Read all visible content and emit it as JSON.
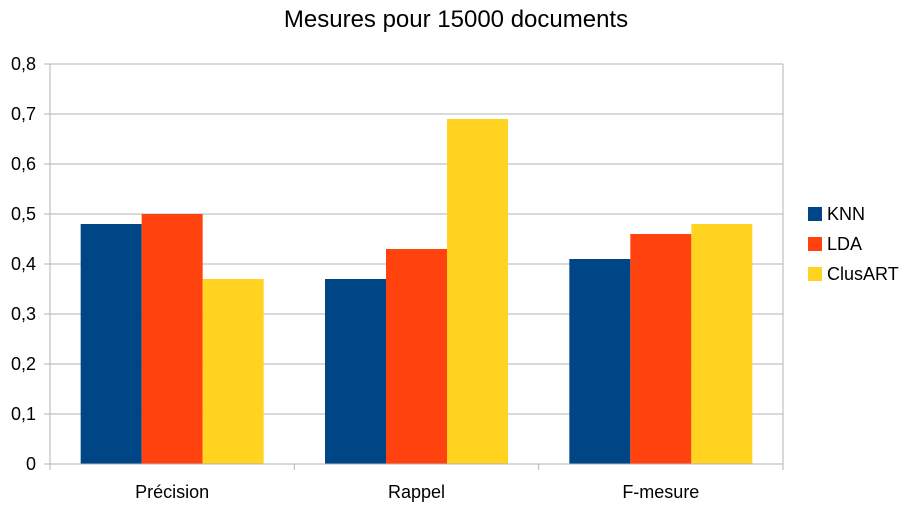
{
  "chart_data": {
    "type": "bar",
    "title": "Mesures pour 15000 documents",
    "categories": [
      "Précision",
      "Rappel",
      "F-mesure"
    ],
    "series": [
      {
        "name": "KNN",
        "color": "#004586",
        "values": [
          0.48,
          0.37,
          0.41
        ]
      },
      {
        "name": "LDA",
        "color": "#ff420e",
        "values": [
          0.5,
          0.43,
          0.46
        ]
      },
      {
        "name": "ClusART",
        "color": "#ffd320",
        "values": [
          0.37,
          0.69,
          0.48
        ]
      }
    ],
    "ylim": [
      0,
      0.8
    ],
    "yticks": [
      "0",
      "0,1",
      "0,2",
      "0,3",
      "0,4",
      "0,5",
      "0,6",
      "0,7",
      "0,8"
    ],
    "grid": true,
    "legend_position": "right"
  }
}
